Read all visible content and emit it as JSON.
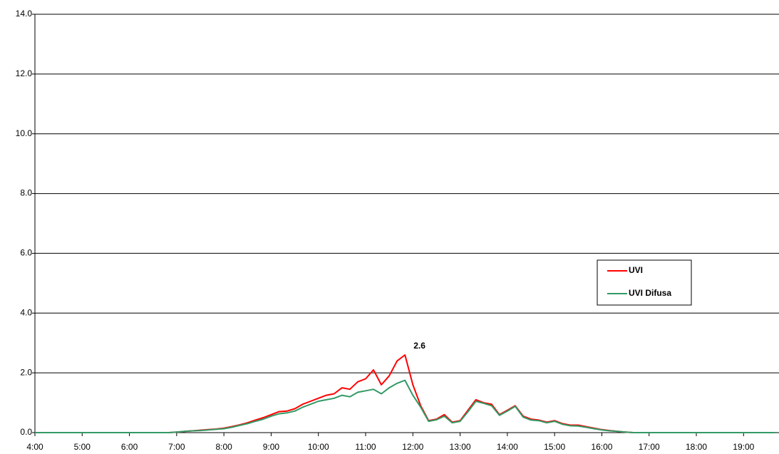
{
  "chart_data": {
    "type": "line",
    "x": [
      240,
      250,
      260,
      270,
      280,
      290,
      300,
      310,
      320,
      330,
      340,
      350,
      360,
      370,
      380,
      390,
      400,
      410,
      420,
      430,
      440,
      450,
      460,
      470,
      480,
      490,
      500,
      510,
      520,
      530,
      540,
      550,
      560,
      570,
      580,
      590,
      600,
      610,
      620,
      630,
      640,
      650,
      660,
      670,
      680,
      690,
      700,
      710,
      720,
      730,
      740,
      750,
      760,
      770,
      780,
      790,
      800,
      810,
      820,
      830,
      840,
      850,
      860,
      870,
      880,
      890,
      900,
      910,
      920,
      930,
      940,
      950,
      960,
      970,
      980,
      990,
      1000,
      1010,
      1020,
      1030,
      1040,
      1050,
      1060,
      1070,
      1080,
      1090,
      1100,
      1110,
      1120,
      1130,
      1140,
      1150,
      1160,
      1170,
      1180
    ],
    "series": [
      {
        "name": "UVI",
        "color": "#ff0000",
        "values": [
          0,
          0,
          0,
          0,
          0,
          0,
          0,
          0,
          0,
          0,
          0,
          0,
          0,
          0,
          0,
          0,
          0,
          0,
          0.02,
          0.04,
          0.06,
          0.08,
          0.1,
          0.12,
          0.15,
          0.2,
          0.26,
          0.33,
          0.42,
          0.5,
          0.6,
          0.7,
          0.72,
          0.8,
          0.95,
          1.05,
          1.15,
          1.25,
          1.3,
          1.5,
          1.45,
          1.7,
          1.8,
          2.1,
          1.6,
          1.9,
          2.4,
          2.6,
          1.6,
          0.9,
          0.4,
          0.45,
          0.6,
          0.35,
          0.4,
          0.75,
          1.1,
          1.0,
          0.95,
          0.6,
          0.75,
          0.9,
          0.55,
          0.45,
          0.42,
          0.35,
          0.4,
          0.3,
          0.25,
          0.25,
          0.2,
          0.15,
          0.1,
          0.07,
          0.04,
          0.02,
          0,
          0,
          0,
          0,
          0,
          0,
          0,
          0,
          0,
          0,
          0,
          0,
          0,
          0,
          0,
          0,
          0,
          0,
          0
        ]
      },
      {
        "name": "UVI Difusa",
        "color": "#339966",
        "values": [
          0,
          0,
          0,
          0,
          0,
          0,
          0,
          0,
          0,
          0,
          0,
          0,
          0,
          0,
          0,
          0,
          0,
          0,
          0.02,
          0.04,
          0.06,
          0.07,
          0.09,
          0.11,
          0.13,
          0.18,
          0.24,
          0.3,
          0.38,
          0.45,
          0.55,
          0.63,
          0.66,
          0.72,
          0.85,
          0.95,
          1.05,
          1.1,
          1.15,
          1.25,
          1.2,
          1.35,
          1.4,
          1.45,
          1.3,
          1.5,
          1.65,
          1.75,
          1.25,
          0.85,
          0.38,
          0.43,
          0.55,
          0.33,
          0.38,
          0.7,
          1.05,
          0.98,
          0.9,
          0.58,
          0.72,
          0.88,
          0.52,
          0.42,
          0.4,
          0.33,
          0.38,
          0.28,
          0.23,
          0.22,
          0.18,
          0.13,
          0.09,
          0.06,
          0.04,
          0.02,
          0,
          0,
          0,
          0,
          0,
          0,
          0,
          0,
          0,
          0,
          0,
          0,
          0,
          0,
          0,
          0,
          0,
          0,
          0
        ]
      }
    ],
    "annotations": [
      {
        "text": "2.6",
        "x": 710,
        "y": 2.6
      }
    ],
    "xlim": [
      240,
      1185
    ],
    "xticks": [
      {
        "value": 240,
        "label": "4:00"
      },
      {
        "value": 300,
        "label": "5:00"
      },
      {
        "value": 360,
        "label": "6:00"
      },
      {
        "value": 420,
        "label": "7:00"
      },
      {
        "value": 480,
        "label": "8:00"
      },
      {
        "value": 540,
        "label": "9:00"
      },
      {
        "value": 600,
        "label": "10:00"
      },
      {
        "value": 660,
        "label": "11:00"
      },
      {
        "value": 720,
        "label": "12:00"
      },
      {
        "value": 780,
        "label": "13:00"
      },
      {
        "value": 840,
        "label": "14:00"
      },
      {
        "value": 900,
        "label": "15:00"
      },
      {
        "value": 960,
        "label": "16:00"
      },
      {
        "value": 1020,
        "label": "17:00"
      },
      {
        "value": 1080,
        "label": "18:00"
      },
      {
        "value": 1140,
        "label": "19:00"
      }
    ],
    "ylim": [
      0,
      14
    ],
    "yticks": [
      {
        "value": 0,
        "label": "0.0"
      },
      {
        "value": 2,
        "label": "2.0"
      },
      {
        "value": 4,
        "label": "4.0"
      },
      {
        "value": 6,
        "label": "6.0"
      },
      {
        "value": 8,
        "label": "8.0"
      },
      {
        "value": 10,
        "label": "10.0"
      },
      {
        "value": 12,
        "label": "12.0"
      },
      {
        "value": 14,
        "label": "14.0"
      }
    ],
    "grid": true
  }
}
